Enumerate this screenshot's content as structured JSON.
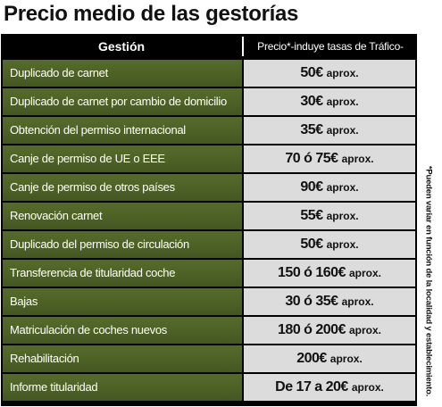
{
  "title": "Precio medio de las gestorías",
  "table": {
    "header": {
      "col_service": "Gestión",
      "col_price": "Precio*-induye tasas de Tráfico-"
    },
    "rows": [
      {
        "service": "Duplicado de carnet",
        "price": "50€",
        "unit": "aprox."
      },
      {
        "service": "Duplicado de carnet  por cambio de domicilio",
        "price": "30€",
        "unit": "aprox."
      },
      {
        "service": "Obtención del permiso internacional",
        "price": "35€",
        "unit": "aprox."
      },
      {
        "service": "Canje de permiso de UE o EEE",
        "price": "70 ó 75€",
        "unit": "aprox."
      },
      {
        "service": "Canje de permiso de otros países",
        "price": "90€",
        "unit": "aprox."
      },
      {
        "service": "Renovación carnet",
        "price": "55€",
        "unit": "aprox."
      },
      {
        "service": "Duplicado del permiso de circulación",
        "price": "50€",
        "unit": "aprox."
      },
      {
        "service": "Transferencia de  titularidad coche",
        "price": "150 ó 160€",
        "unit": "aprox."
      },
      {
        "service": "Bajas",
        "price": "30 ó 35€",
        "unit": "aprox."
      },
      {
        "service": "Matriculación de  coches nuevos",
        "price": "180 ó 200€",
        "unit": "aprox."
      },
      {
        "service": "Rehabilitación",
        "price": "200€",
        "unit": "aprox."
      },
      {
        "service": "Informe titularidad",
        "price": "De 17 a 20€",
        "unit": "aprox."
      }
    ]
  },
  "footnote": "*Pueden variar en función de la localidad y establecimiento."
}
